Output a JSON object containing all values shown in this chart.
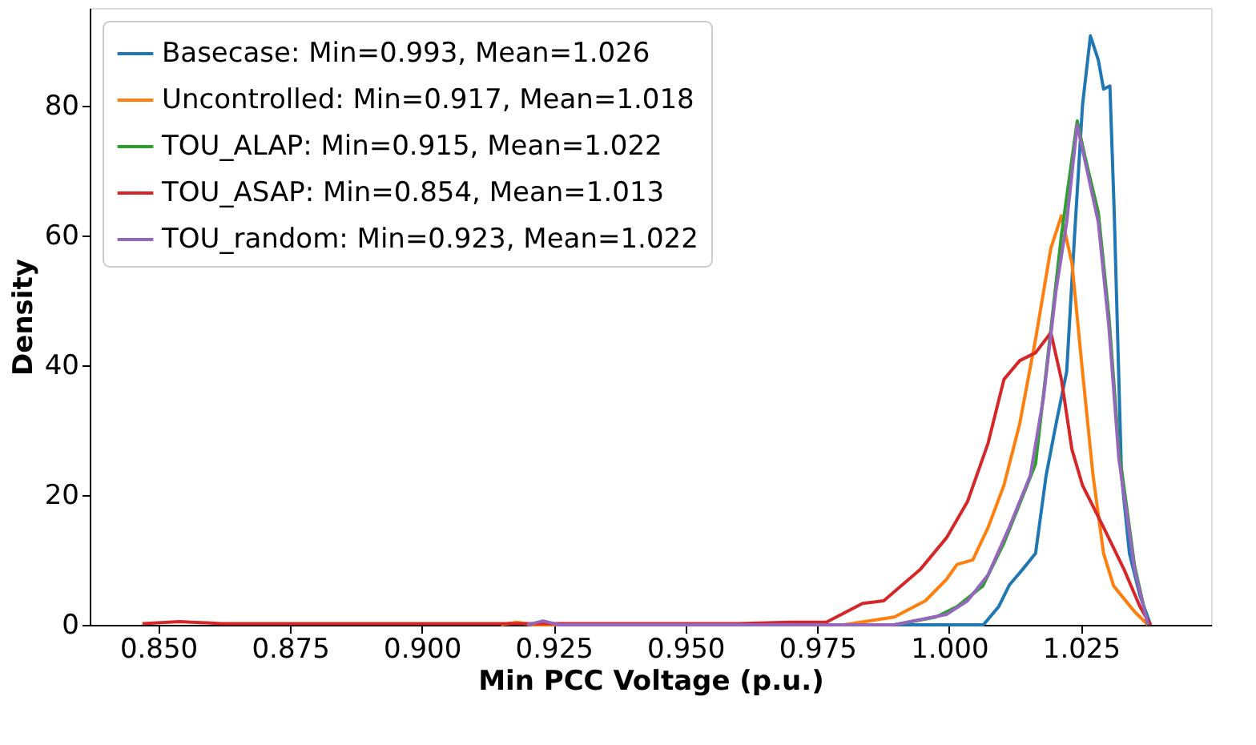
{
  "chart_data": {
    "type": "line",
    "xlabel": "Min PCC Voltage (p.u.)",
    "ylabel": "Density",
    "xlim": [
      0.837,
      1.0497
    ],
    "ylim": [
      0,
      95
    ],
    "xticks": [
      {
        "value": 0.85,
        "label": "0.850"
      },
      {
        "value": 0.875,
        "label": "0.875"
      },
      {
        "value": 0.9,
        "label": "0.900"
      },
      {
        "value": 0.925,
        "label": "0.925"
      },
      {
        "value": 0.95,
        "label": "0.950"
      },
      {
        "value": 0.975,
        "label": "0.975"
      },
      {
        "value": 1.0,
        "label": "1.000"
      },
      {
        "value": 1.025,
        "label": "1.025"
      }
    ],
    "yticks": [
      0,
      20,
      40,
      60,
      80
    ],
    "grid": false,
    "legend": "top left",
    "line_style": "solid",
    "marker": "none",
    "series": [
      {
        "name": "Basecase: Min=0.993, Mean=1.026",
        "color": "#1f77b4",
        "x": [
          0.99,
          1.0065,
          1.0094,
          1.0114,
          1.0139,
          1.0164,
          1.0184,
          1.0203,
          1.0223,
          1.0238,
          1.0253,
          1.0268,
          1.0283,
          1.0293,
          1.0305,
          1.0313,
          1.0327,
          1.0342,
          1.0362,
          1.0382
        ],
        "values": [
          0,
          0,
          2.8,
          6.1,
          8.5,
          11,
          23,
          31,
          39,
          60,
          80,
          90.7,
          87,
          82.5,
          83,
          64,
          23,
          11,
          4.5,
          0
        ]
      },
      {
        "name": "Uncontrolled: Min=0.917, Mean=1.018",
        "color": "#ff7f0e",
        "x": [
          0.915,
          0.918,
          0.921,
          0.98,
          0.9896,
          0.9955,
          0.9995,
          1.0015,
          1.0045,
          1.0074,
          1.0104,
          1.0134,
          1.0164,
          1.0193,
          1.0213,
          1.0233,
          1.0253,
          1.0273,
          1.0293,
          1.0312,
          1.0352,
          1.0377
        ],
        "values": [
          0,
          0.4,
          0,
          0,
          1.2,
          3.7,
          7,
          9.3,
          10,
          15,
          21.5,
          31,
          44,
          58,
          63,
          55.7,
          39,
          23,
          11,
          6,
          2,
          0
        ]
      },
      {
        "name": "TOU_ALAP: Min=0.915, Mean=1.022",
        "color": "#2ca02c",
        "x": [
          0.9896,
          0.9975,
          1.0015,
          1.0064,
          1.0104,
          1.0144,
          1.0164,
          1.0184,
          1.0213,
          1.0243,
          1.0258,
          1.0283,
          1.0303,
          1.0322,
          1.0352,
          1.0377
        ],
        "values": [
          0,
          1.2,
          2.8,
          6,
          12.6,
          20.7,
          24.8,
          39,
          60,
          77.6,
          72,
          63.5,
          47.6,
          27,
          9,
          0
        ]
      },
      {
        "name": "TOU_ASAP: Min=0.854, Mean=1.013",
        "color": "#d62728",
        "x": [
          0.847,
          0.854,
          0.862,
          0.9598,
          0.9697,
          0.9767,
          0.9836,
          0.9876,
          0.9945,
          0.9995,
          1.0035,
          1.0074,
          1.0104,
          1.0134,
          1.0164,
          1.0193,
          1.0213,
          1.0233,
          1.0253,
          1.0293,
          1.0332,
          1.0362,
          1.0382
        ],
        "values": [
          0.2,
          0.5,
          0.2,
          0.2,
          0.4,
          0.4,
          3.3,
          3.7,
          8.5,
          13.4,
          19,
          28,
          37.8,
          40.7,
          41.9,
          45,
          37.8,
          27,
          21.5,
          15,
          8.5,
          2.8,
          0
        ]
      },
      {
        "name": "TOU_random: Min=0.923, Mean=1.022",
        "color": "#9467bd",
        "x": [
          0.92,
          0.923,
          0.926,
          0.9896,
          0.9995,
          1.0035,
          1.0074,
          1.0114,
          1.0154,
          1.0179,
          1.0203,
          1.0223,
          1.0243,
          1.0263,
          1.0283,
          1.0303,
          1.0322,
          1.0352,
          1.0377
        ],
        "values": [
          0,
          0.6,
          0,
          0,
          1.6,
          3.7,
          7.7,
          15,
          23,
          35,
          51.6,
          62,
          77,
          69.5,
          62,
          46,
          25.6,
          8.5,
          0
        ]
      }
    ]
  }
}
